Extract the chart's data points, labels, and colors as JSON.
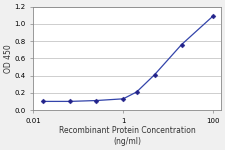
{
  "x": [
    0.016,
    0.064,
    0.25,
    1.0,
    2.0,
    5.0,
    20.0,
    100.0
  ],
  "y": [
    0.1,
    0.1,
    0.11,
    0.13,
    0.21,
    0.41,
    0.76,
    1.09
  ],
  "line_color": "#3344aa",
  "marker_color": "#22228a",
  "xlabel_line1": "Recombinant Protein Concentration",
  "xlabel_line2": "(ng/ml)",
  "ylabel": "OD 450",
  "ylim": [
    0.0,
    1.2
  ],
  "yticks": [
    0.0,
    0.2,
    0.4,
    0.6,
    0.8,
    1.0,
    1.2
  ],
  "xticks": [
    0.01,
    1,
    100
  ],
  "xlim": [
    0.01,
    150
  ],
  "background_color": "#f0f0f0",
  "plot_bg_color": "#ffffff",
  "grid_color": "#bbbbbb",
  "label_fontsize": 5.5,
  "tick_fontsize": 5.0
}
